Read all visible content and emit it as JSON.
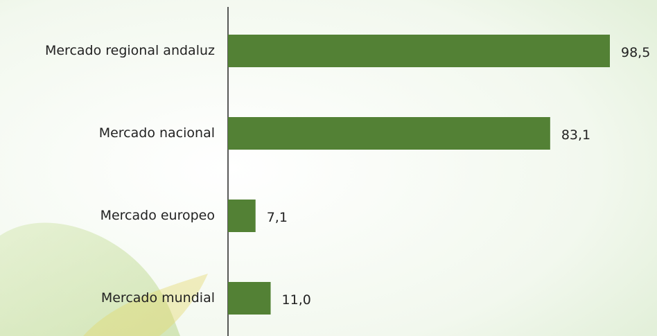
{
  "chart_data": {
    "type": "bar",
    "orientation": "horizontal",
    "categories": [
      "Mercado regional andaluz",
      "Mercado nacional",
      "Mercado europeo",
      "Mercado mundial"
    ],
    "values": [
      98.5,
      83.1,
      7.1,
      11.0
    ],
    "value_labels": [
      "98,5",
      "83,1",
      "7,1",
      "11,0"
    ],
    "color": "#538135"
  }
}
